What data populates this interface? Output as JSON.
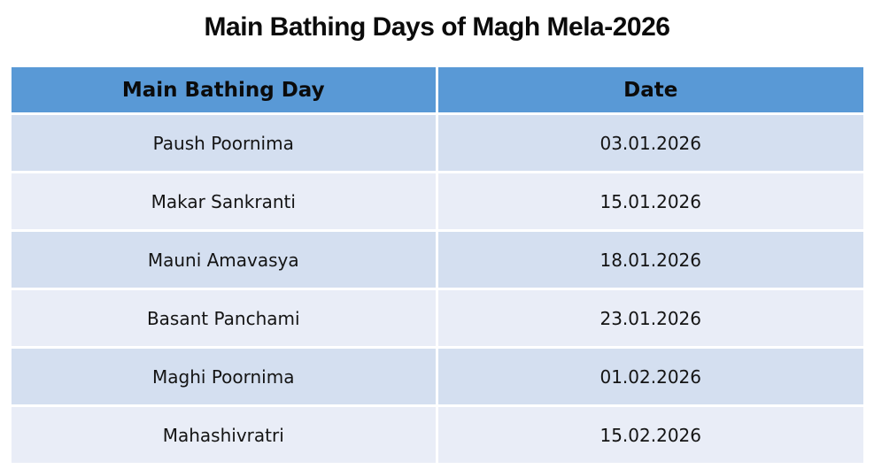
{
  "page": {
    "title": "Main Bathing Days of Magh Mela-2026"
  },
  "table": {
    "columns": [
      "Main Bathing Day",
      "Date"
    ],
    "rows": [
      [
        "Paush Poornima",
        "03.01.2026"
      ],
      [
        "Makar Sankranti",
        "15.01.2026"
      ],
      [
        "Mauni Amavasya",
        "18.01.2026"
      ],
      [
        "Basant Panchami",
        "23.01.2026"
      ],
      [
        "Maghi Poornima",
        "01.02.2026"
      ],
      [
        "Mahashivratri",
        "15.02.2026"
      ]
    ]
  },
  "colors": {
    "header_bg": "#5999D6",
    "row_alt_dark": "#D4DFF0",
    "row_alt_light": "#E9EDF7",
    "text": "#141414"
  }
}
